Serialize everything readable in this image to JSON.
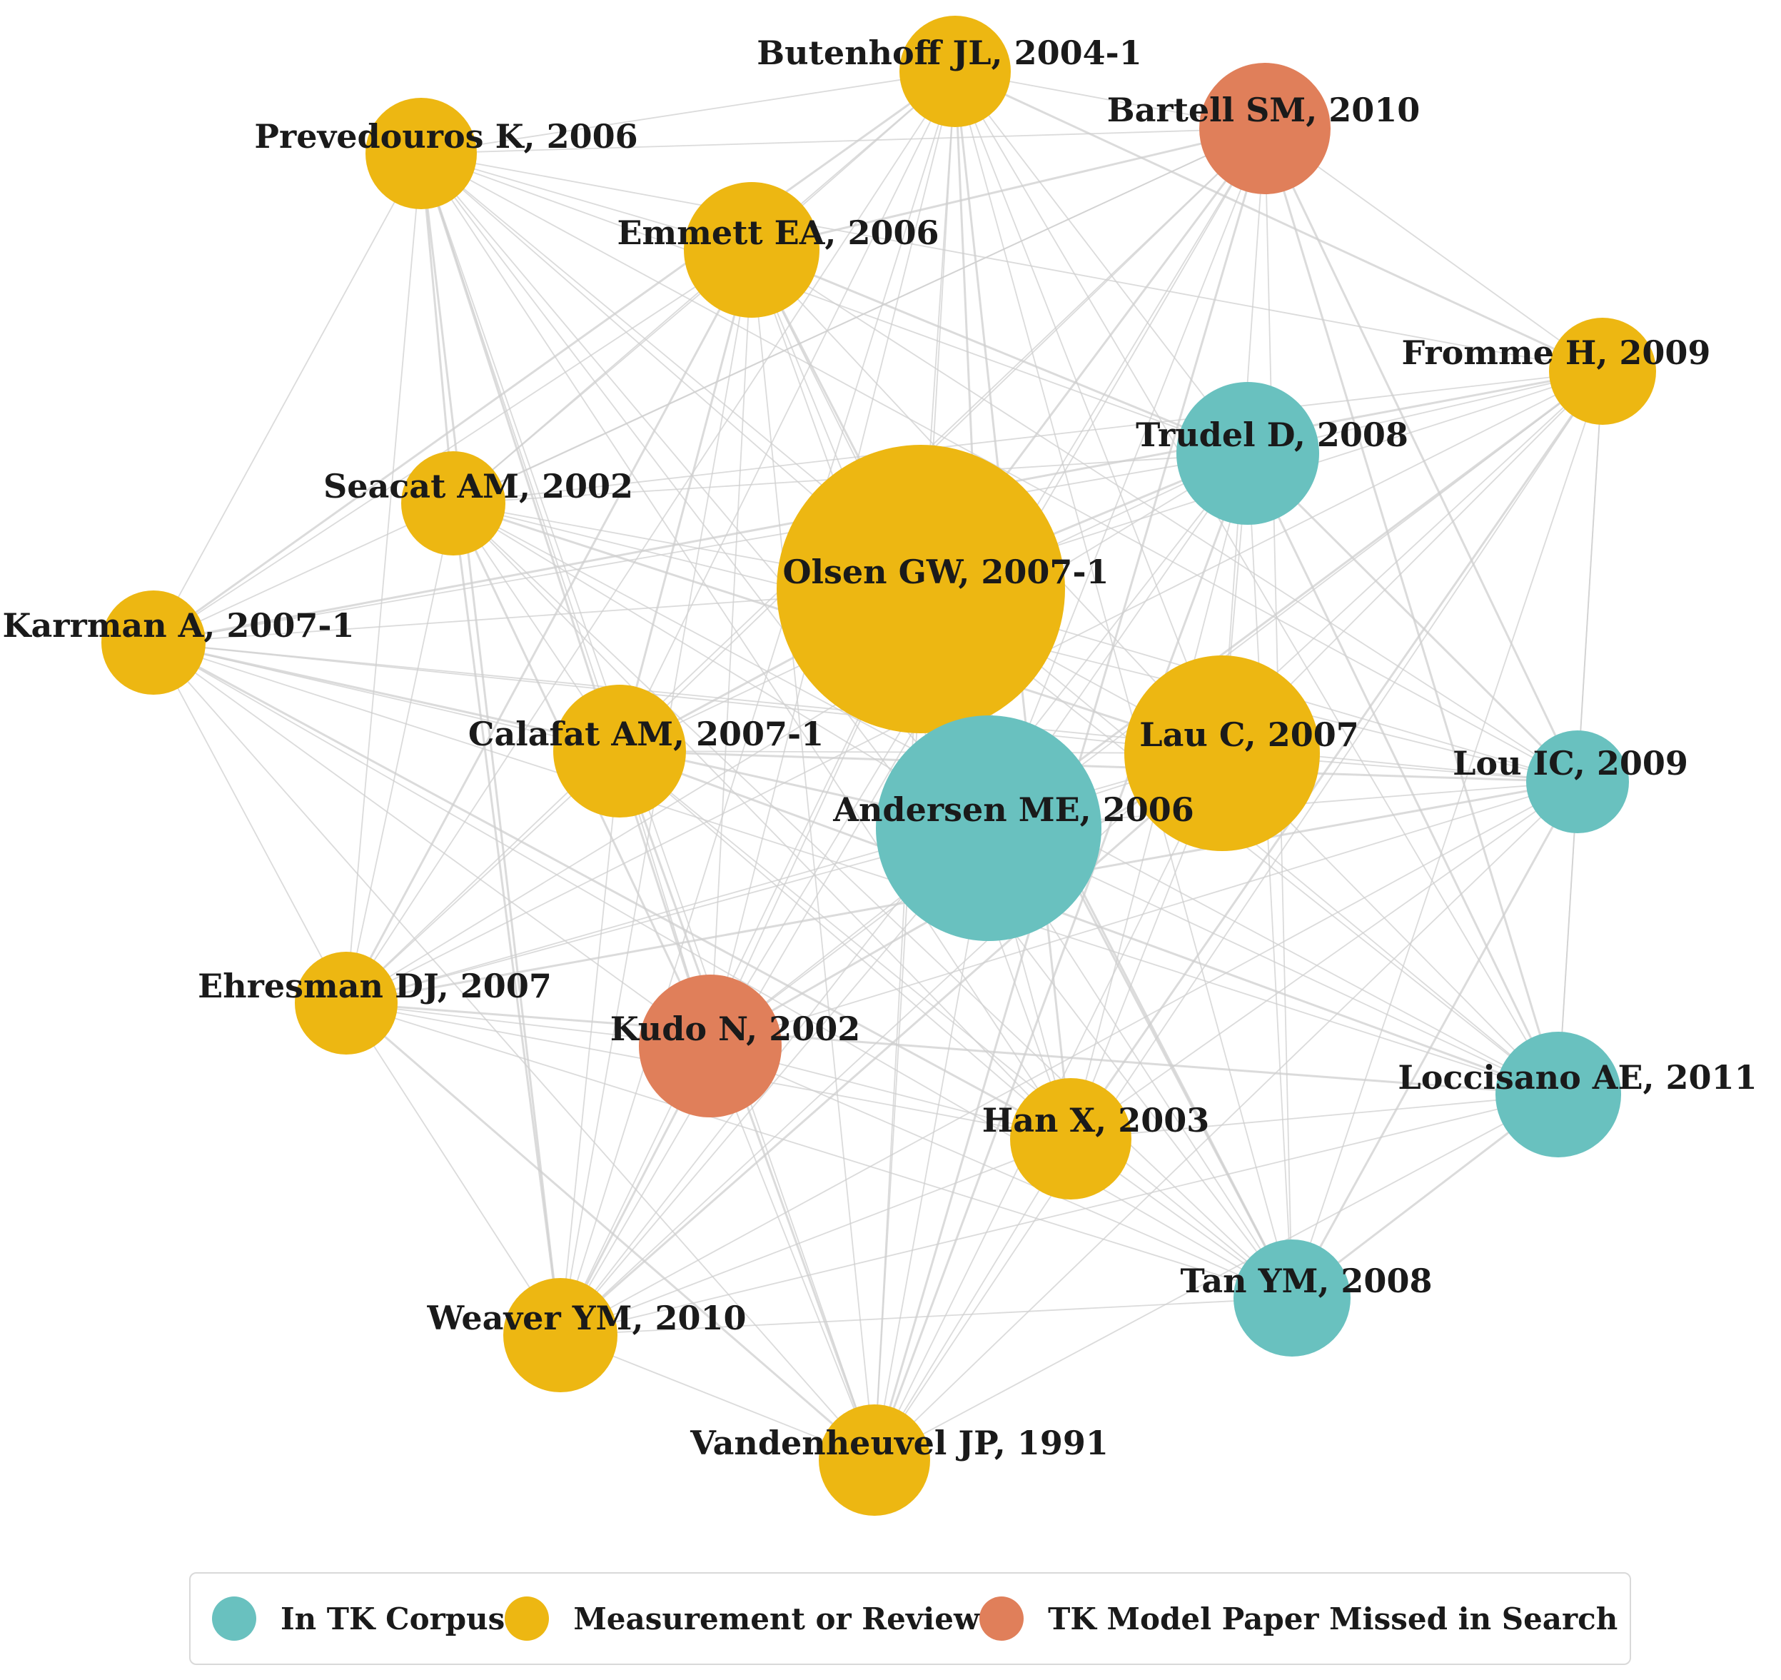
{
  "categories": {
    "corpus": {
      "label": "In TK Corpus",
      "color": "#69C1BF"
    },
    "measurement": {
      "label": "Measurement or Review",
      "color": "#EDB712"
    },
    "missed": {
      "label": "TK Model Paper Missed in Search",
      "color": "#E07F5A"
    }
  },
  "edge_color": "#cfcfcf",
  "nodes": [
    {
      "id": "butenhoff",
      "label": "Butenhoff JL, 2004-1",
      "category": "measurement"
    },
    {
      "id": "bartell",
      "label": "Bartell SM, 2010",
      "category": "missed"
    },
    {
      "id": "prevedouros",
      "label": "Prevedouros K, 2006",
      "category": "measurement"
    },
    {
      "id": "emmett",
      "label": "Emmett EA, 2006",
      "category": "measurement"
    },
    {
      "id": "fromme",
      "label": "Fromme H, 2009",
      "category": "measurement"
    },
    {
      "id": "trudel",
      "label": "Trudel D, 2008",
      "category": "corpus"
    },
    {
      "id": "seacat",
      "label": "Seacat AM, 2002",
      "category": "measurement"
    },
    {
      "id": "olsen",
      "label": "Olsen GW, 2007-1",
      "category": "measurement"
    },
    {
      "id": "karrman",
      "label": "Karrman A, 2007-1",
      "category": "measurement"
    },
    {
      "id": "calafat",
      "label": "Calafat AM, 2007-1",
      "category": "measurement"
    },
    {
      "id": "lau",
      "label": "Lau C, 2007",
      "category": "measurement"
    },
    {
      "id": "lou",
      "label": "Lou IC, 2009",
      "category": "corpus"
    },
    {
      "id": "andersen",
      "label": "Andersen ME, 2006",
      "category": "corpus"
    },
    {
      "id": "ehresman",
      "label": "Ehresman DJ, 2007",
      "category": "measurement"
    },
    {
      "id": "kudo",
      "label": "Kudo N, 2002",
      "category": "missed"
    },
    {
      "id": "loccisano",
      "label": "Loccisano AE, 2011",
      "category": "corpus"
    },
    {
      "id": "han",
      "label": "Han X, 2003",
      "category": "measurement"
    },
    {
      "id": "tan",
      "label": "Tan YM, 2008",
      "category": "corpus"
    },
    {
      "id": "weaver",
      "label": "Weaver YM, 2010",
      "category": "measurement"
    },
    {
      "id": "vandenheuvel",
      "label": "Vandenheuvel JP, 1991",
      "category": "measurement"
    }
  ]
}
